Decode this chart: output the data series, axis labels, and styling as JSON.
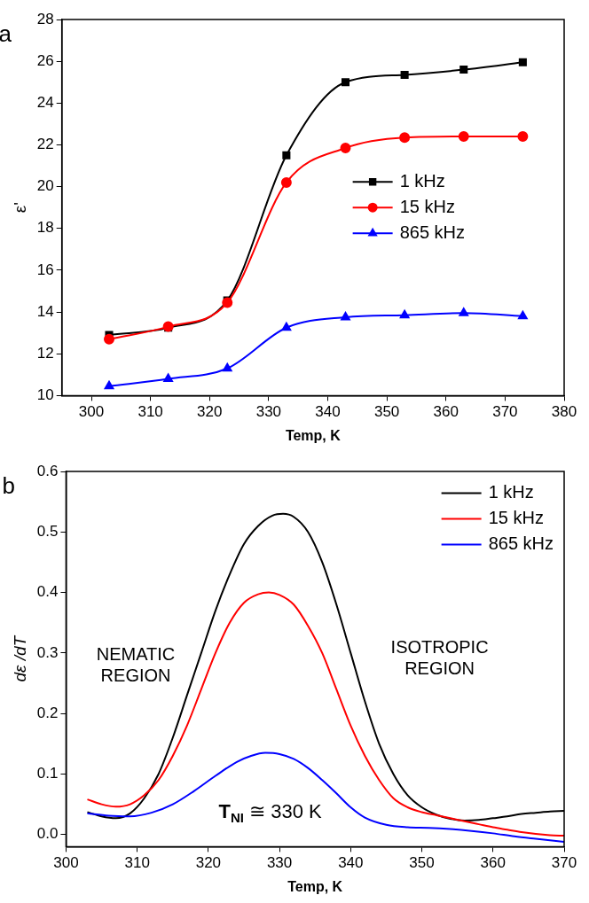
{
  "chart_data": [
    {
      "type": "line",
      "xlabel": "Temp, K",
      "ylabel": "ε'",
      "annotations": [
        "a"
      ],
      "xlim": [
        295,
        380
      ],
      "xticks": [
        300,
        310,
        320,
        330,
        340,
        350,
        360,
        370,
        380
      ],
      "ylim": [
        10,
        28
      ],
      "yticks": [
        10,
        12,
        14,
        16,
        18,
        20,
        22,
        24,
        26,
        28
      ],
      "legend": "center right",
      "line_style": "solid",
      "x": [
        303,
        313,
        323,
        333,
        343,
        353,
        363,
        373
      ],
      "series": [
        {
          "name": "1 kHz",
          "color": "#000000",
          "marker": "square",
          "values": [
            12.9,
            13.25,
            14.55,
            21.5,
            25.0,
            25.35,
            25.6,
            25.95
          ]
        },
        {
          "name": "15 kHz",
          "color": "#ff0000",
          "marker": "circle",
          "values": [
            12.7,
            13.3,
            14.45,
            20.2,
            21.85,
            22.35,
            22.4,
            22.4
          ]
        },
        {
          "name": "865 kHz",
          "color": "#0000ff",
          "marker": "triangle",
          "values": [
            10.45,
            10.8,
            11.3,
            13.25,
            13.75,
            13.85,
            13.95,
            13.8
          ]
        }
      ]
    },
    {
      "type": "line",
      "xlabel": "Temp, K",
      "ylabel": "dε /dT",
      "annotations": [
        "b",
        "NEMATIC\nREGION",
        "ISOTROPIC\nREGION",
        "T$_{NI}$ ≅ 330 K"
      ],
      "xlim": [
        300,
        370
      ],
      "xticks": [
        300,
        310,
        320,
        330,
        340,
        350,
        360,
        370
      ],
      "ylim": [
        -0.02,
        0.6
      ],
      "yticks": [
        {
          "value": 0,
          "label": "0.0"
        },
        0.1,
        0.2,
        0.3,
        0.4,
        0.5,
        0.6
      ],
      "legend": "top right",
      "marker": "none",
      "line_style": "solid",
      "series": [
        {
          "name": "1 kHz",
          "color": "#000000",
          "x": [
            303,
            305,
            307,
            309,
            311,
            313,
            315,
            317,
            319,
            321,
            323,
            325,
            327,
            329,
            330.5,
            332,
            334,
            336,
            338,
            340,
            342,
            344,
            346,
            348,
            350,
            352,
            354,
            356,
            358,
            360,
            362,
            364,
            366,
            368,
            370
          ],
          "values": [
            0.037,
            0.03,
            0.027,
            0.035,
            0.06,
            0.1,
            0.16,
            0.23,
            0.3,
            0.37,
            0.43,
            0.48,
            0.51,
            0.527,
            0.53,
            0.525,
            0.5,
            0.45,
            0.38,
            0.3,
            0.22,
            0.15,
            0.1,
            0.065,
            0.045,
            0.033,
            0.026,
            0.023,
            0.024,
            0.027,
            0.03,
            0.034,
            0.036,
            0.038,
            0.039
          ]
        },
        {
          "name": "15 kHz",
          "color": "#ff0000",
          "x": [
            303,
            305,
            307,
            309,
            311,
            313,
            315,
            317,
            319,
            321,
            323,
            325,
            327,
            328.5,
            330,
            332,
            334,
            336,
            338,
            340,
            342,
            344,
            346,
            348,
            350,
            352,
            354,
            356,
            358,
            360,
            362,
            364,
            366,
            368,
            370
          ],
          "values": [
            0.058,
            0.05,
            0.046,
            0.05,
            0.065,
            0.09,
            0.13,
            0.18,
            0.24,
            0.3,
            0.35,
            0.383,
            0.397,
            0.4,
            0.396,
            0.38,
            0.345,
            0.3,
            0.24,
            0.18,
            0.13,
            0.09,
            0.06,
            0.045,
            0.037,
            0.032,
            0.027,
            0.022,
            0.017,
            0.012,
            0.008,
            0.004,
            0.001,
            -0.001,
            -0.002
          ]
        },
        {
          "name": "865 kHz",
          "color": "#0000ff",
          "x": [
            303,
            306,
            309,
            312,
            315,
            318,
            321,
            324,
            326,
            328,
            330,
            332,
            334,
            336,
            338,
            340,
            342,
            345,
            348,
            351,
            354,
            357,
            360,
            363,
            366,
            370
          ],
          "values": [
            0.035,
            0.031,
            0.03,
            0.036,
            0.05,
            0.072,
            0.097,
            0.12,
            0.13,
            0.135,
            0.133,
            0.125,
            0.11,
            0.09,
            0.068,
            0.045,
            0.028,
            0.016,
            0.012,
            0.011,
            0.009,
            0.006,
            0.002,
            -0.003,
            -0.007,
            -0.012
          ]
        }
      ]
    }
  ]
}
